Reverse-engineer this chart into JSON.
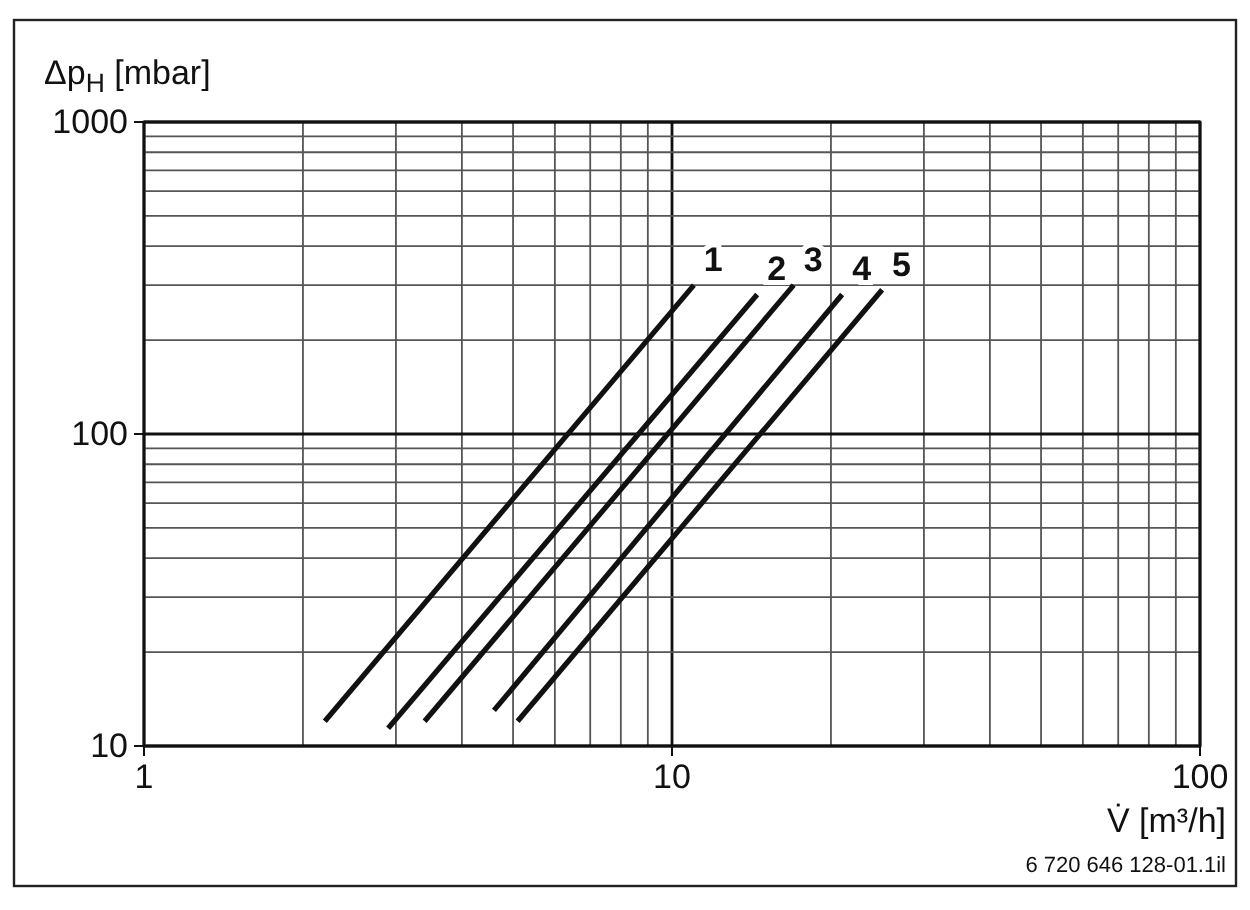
{
  "chart_data": {
    "type": "line",
    "xlabel": "V̇ [m³/h]",
    "ylabel": "Δp$_{H}$ [mbar]",
    "log": "xy",
    "xlim": [
      1,
      100
    ],
    "ylim": [
      10,
      1000
    ],
    "xticks": [
      1,
      10,
      100
    ],
    "yticks": [
      10,
      100,
      1000
    ],
    "grid": true,
    "line_style": "solid",
    "series": [
      {
        "name": "1",
        "color": "#111111",
        "x": [
          2.2,
          11
        ],
        "values": [
          12,
          300
        ]
      },
      {
        "name": "2",
        "color": "#111111",
        "x": [
          2.9,
          14.5
        ],
        "values": [
          11.4,
          280
        ]
      },
      {
        "name": "3",
        "color": "#111111",
        "x": [
          3.4,
          17
        ],
        "values": [
          12,
          300
        ]
      },
      {
        "name": "4",
        "color": "#111111",
        "x": [
          4.6,
          21
        ],
        "values": [
          13,
          280
        ]
      },
      {
        "name": "5",
        "color": "#111111",
        "x": [
          5.1,
          25
        ],
        "values": [
          12,
          290
        ]
      }
    ],
    "annotations": [
      "6 720 646 128-01.1il"
    ]
  }
}
